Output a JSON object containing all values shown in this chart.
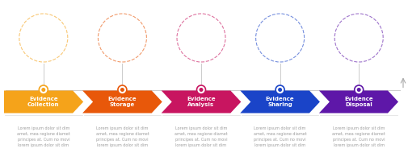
{
  "steps": [
    {
      "title": "Evidence\nCollection",
      "color": "#F5A31A",
      "dot_color": "#F5A31A",
      "circle_color": "#F5A31A",
      "text": "Lorem ipsum dolor sit dim\namet, mea regione diamet\nprincipes at. Cum no movi\nlorem ipsum dolor sit dim"
    },
    {
      "title": "Evidence\nStorage",
      "color": "#E8580A",
      "dot_color": "#E8580A",
      "circle_color": "#E8580A",
      "text": "Lorem ipsum dolor sit dim\namet, mea regione diamet\nprincipes at. Cum no movi\nlorem ipsum dolor sit dim"
    },
    {
      "title": "Evidence\nAnalysis",
      "color": "#C81560",
      "dot_color": "#C81560",
      "circle_color": "#C81560",
      "text": "Lorem ipsum dolor sit dim\namet, mea regione diamet\nprincipes at. Cum no movi\nlorem ipsum dolor sit dim"
    },
    {
      "title": "Evidence\nSharing",
      "color": "#1A44C8",
      "dot_color": "#1A44C8",
      "circle_color": "#1A44C8",
      "text": "Lorem ipsum dolor sit dim\namet, mea regione diamet\nprincipes at. Cum no movi\nlorem ipsum dolor sit dim"
    },
    {
      "title": "Evidence\nDisposal",
      "color": "#5E17A8",
      "dot_color": "#5E17A8",
      "circle_color": "#5E17A8",
      "text": "Lorem ipsum dolor sit dim\namet, mea regione diamet\nprincipes at. Cum no movi\nlorem ipsum dolor sit dim"
    }
  ],
  "bg_color": "#FFFFFF",
  "figsize": [
    5.05,
    2.0
  ],
  "dpi": 100
}
